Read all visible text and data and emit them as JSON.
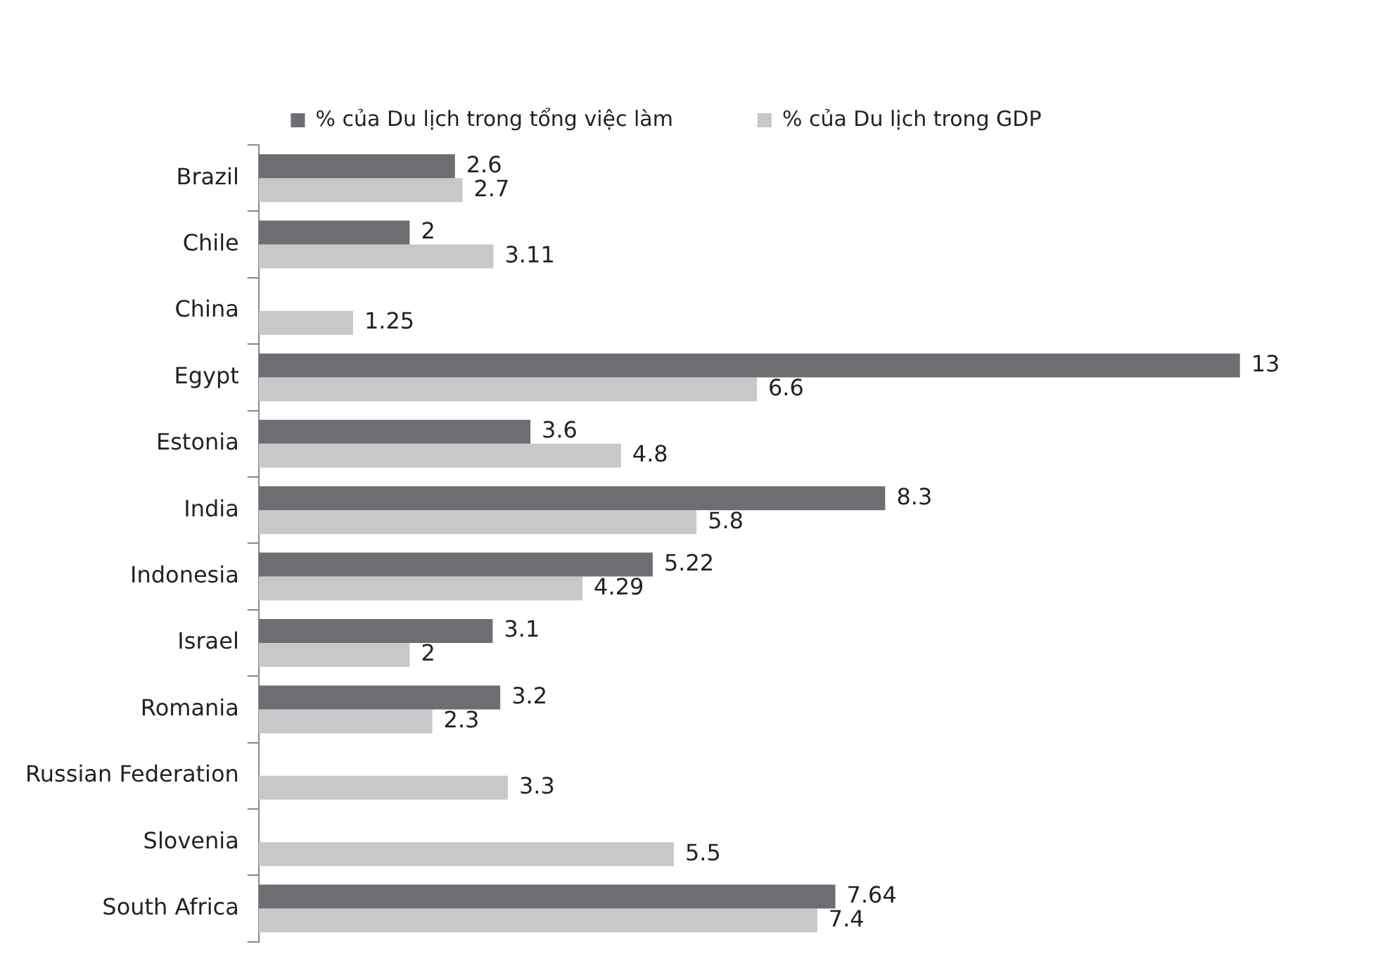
{
  "chart_data": {
    "type": "bar",
    "orientation": "horizontal",
    "categories": [
      "Brazil",
      "Chile",
      "China",
      "Egypt",
      "Estonia",
      "India",
      "Indonesia",
      "Israel",
      "Romania",
      "Russian Federation",
      "Slovenia",
      "South Africa"
    ],
    "series": [
      {
        "name": "% của Du lịch trong tổng việc làm",
        "color": "#6d6e71",
        "values": [
          2.6,
          2,
          null,
          13,
          3.6,
          8.3,
          5.22,
          3.1,
          3.2,
          null,
          null,
          7.64
        ]
      },
      {
        "name": "% của Du lịch trong GDP",
        "color": "#c7c8ca",
        "values": [
          2.7,
          3.11,
          1.25,
          6.6,
          4.8,
          5.8,
          4.29,
          2,
          2.3,
          3.3,
          5.5,
          7.4
        ]
      }
    ],
    "data_labels": true,
    "legend": "top"
  }
}
